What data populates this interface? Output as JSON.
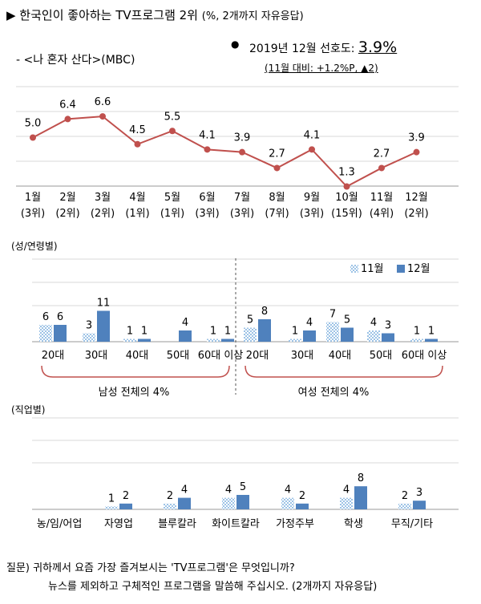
{
  "header": {
    "title_main": "▶ 한국인이 좋아하는 TV프로그램 2위",
    "title_sub": "(%, 2개까지 자유응답)",
    "program": "- <나 혼자 산다>(MBC)",
    "bullet": "●",
    "pref_label": "2019년 12월 선호도:",
    "pref_value": "3.9%",
    "pref_change": "(11월 대비: +1.2%P,  ▲2)"
  },
  "colors": {
    "line": "#c0504d",
    "bar_dec": "#4f81bd",
    "bar_nov": "#9dc3e6",
    "grid": "#d9d9d9",
    "bracket": "#c0504d"
  },
  "chart_data": [
    {
      "id": "monthly",
      "type": "line",
      "categories": [
        "1월",
        "2월",
        "3월",
        "4월",
        "5월",
        "6월",
        "7월",
        "8월",
        "9월",
        "10월",
        "11월",
        "12월"
      ],
      "ranks": [
        "(3위)",
        "(2위)",
        "(2위)",
        "(1위)",
        "(1위)",
        "(3위)",
        "(3위)",
        "(7위)",
        "(3위)",
        "(15위)",
        "(4위)",
        "(2위)"
      ],
      "values": [
        5.0,
        6.4,
        6.6,
        4.5,
        5.5,
        4.1,
        3.9,
        2.7,
        4.1,
        1.3,
        2.7,
        3.9
      ],
      "labels": [
        "5.0",
        "6.4",
        "6.6",
        "4.5",
        "5.5",
        "4.1",
        "3.9",
        "2.7",
        "4.1",
        "1.3",
        "2.7",
        "3.9"
      ],
      "ylim": [
        0,
        8
      ],
      "grid": true
    },
    {
      "id": "gender_age",
      "type": "bar",
      "section_label": "(성/연령별)",
      "legend": [
        "11월",
        "12월"
      ],
      "legend_position": "top-right",
      "categories": [
        "20대",
        "30대",
        "40대",
        "50대",
        "60대 이상",
        "20대",
        "30대",
        "40대",
        "50대",
        "60대 이상"
      ],
      "series": [
        {
          "name": "11월",
          "values": [
            6,
            3,
            1,
            null,
            1,
            5,
            1,
            7,
            4,
            1
          ],
          "labels": [
            "6",
            "3",
            "1",
            "",
            "1",
            "5",
            "1",
            "7",
            "4",
            "1"
          ]
        },
        {
          "name": "12월",
          "values": [
            6,
            11,
            1,
            4,
            1,
            8,
            4,
            5,
            3,
            1
          ],
          "labels": [
            "6",
            "11",
            "1",
            "4",
            "1",
            "8",
            "4",
            "5",
            "3",
            "1"
          ]
        }
      ],
      "group_labels": [
        "남성 전체의 4%",
        "여성 전체의 4%"
      ],
      "ylim": [
        0,
        14
      ]
    },
    {
      "id": "occupation",
      "type": "bar",
      "section_label": "(직업별)",
      "categories": [
        "농/임/어업",
        "자영업",
        "블루칼라",
        "화이트칼라",
        "가정주부",
        "학생",
        "무직/기타"
      ],
      "series": [
        {
          "name": "11월",
          "values": [
            null,
            1,
            2,
            4,
            4,
            4,
            2
          ],
          "labels": [
            "",
            "1",
            "2",
            "4",
            "4",
            "4",
            "2"
          ]
        },
        {
          "name": "12월",
          "values": [
            null,
            2,
            4,
            5,
            2,
            8,
            3
          ],
          "labels": [
            "",
            "2",
            "4",
            "5",
            "2",
            "8",
            "3"
          ]
        }
      ],
      "ylim": [
        0,
        14
      ]
    }
  ],
  "footer": {
    "question_line1": "질문) 귀하께서 요즘 가장 즐겨보시는 'TV프로그램'은 무엇입니까?",
    "question_line2": "뉴스를 제외하고 구체적인 프로그램을 말씀해 주십시오. (2개까지 자유응답)"
  }
}
